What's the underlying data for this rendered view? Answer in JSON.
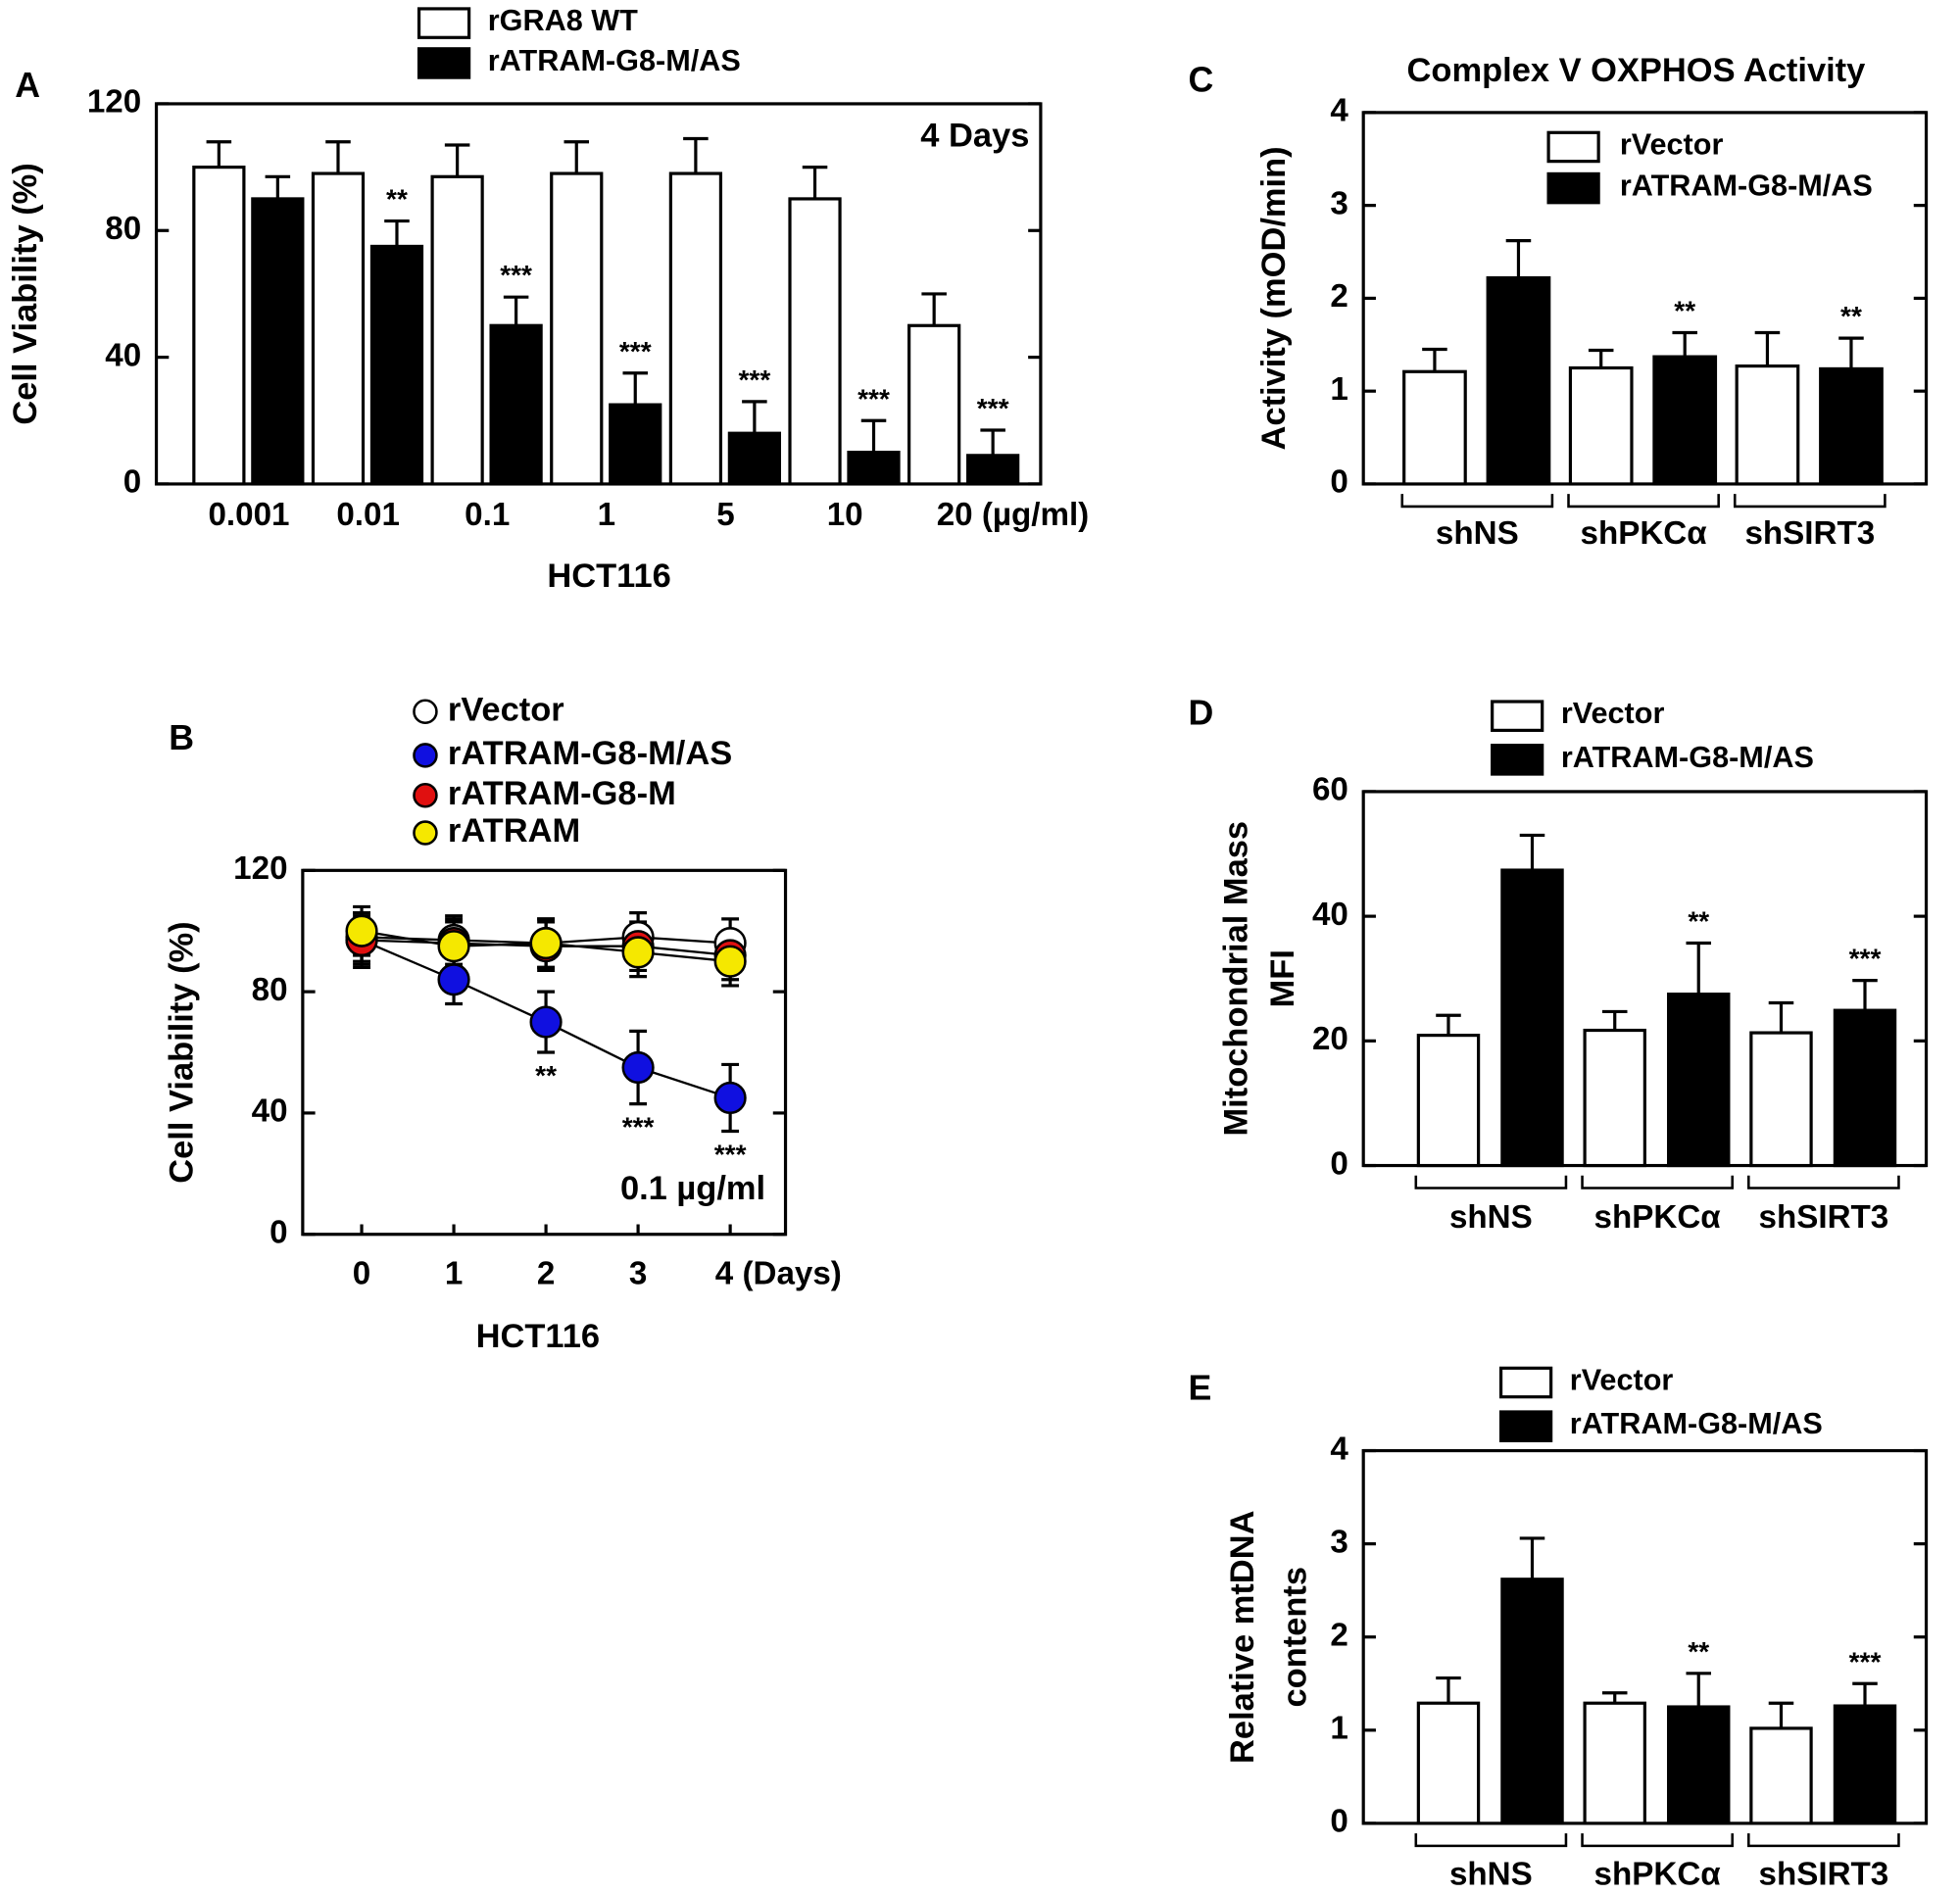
{
  "chart_data": [
    {
      "panel_label": "A",
      "type": "bar",
      "ylabel": "Cell Viability (%)",
      "xlabel": "HCT116",
      "annotation": "4 Days",
      "categories": [
        "0.001",
        "0.01",
        "0.1",
        "1",
        "5",
        "10",
        "20 (µg/ml)"
      ],
      "ylim": [
        0,
        120
      ],
      "yticks": [
        0,
        40,
        80,
        120
      ],
      "series": [
        {
          "name": "rGRA8 WT",
          "color": "#ffffff",
          "values": [
            100,
            98,
            97,
            98,
            98,
            90,
            50
          ],
          "errors": [
            8,
            10,
            10,
            10,
            11,
            10,
            10
          ]
        },
        {
          "name": "rATRAM-G8-M/AS",
          "color": "#000000",
          "values": [
            90,
            75,
            50,
            25,
            16,
            10,
            9
          ],
          "errors": [
            7,
            8,
            9,
            10,
            10,
            10,
            8
          ],
          "significance": [
            null,
            "**",
            "***",
            "***",
            "***",
            "***",
            "***"
          ]
        }
      ]
    },
    {
      "panel_label": "B",
      "type": "line",
      "ylabel": "Cell Viability (%)",
      "xlabel": "HCT116",
      "annotation": "0.1 µg/ml",
      "x": [
        0,
        1,
        2,
        3,
        4
      ],
      "xlim": [
        -0.64,
        4.6
      ],
      "xticks": [
        0,
        1,
        2,
        3,
        {
          "value": 4,
          "label": "4 (Days)"
        }
      ],
      "ylim": [
        0,
        120
      ],
      "yticks": [
        0,
        40,
        80,
        120
      ],
      "series": [
        {
          "name": "rVector",
          "color": "#ffffff",
          "values": [
            98,
            97,
            96,
            98,
            96
          ],
          "errors": [
            8,
            8,
            8,
            8,
            8
          ]
        },
        {
          "name": "rATRAM-G8-M/AS",
          "color": "#1010e0",
          "values": [
            97,
            84,
            70,
            55,
            45
          ],
          "errors": [
            9,
            8,
            10,
            12,
            11
          ],
          "significance": [
            null,
            null,
            "**",
            "***",
            "***"
          ]
        },
        {
          "name": "rATRAM-G8-M",
          "color": "#e01010",
          "values": [
            97,
            96,
            95,
            95,
            92
          ],
          "errors": [
            8,
            8,
            8,
            8,
            8
          ]
        },
        {
          "name": "rATRAM",
          "color": "#f5e800",
          "values": [
            100,
            95,
            96,
            93,
            90
          ],
          "errors": [
            8,
            8,
            8,
            8,
            8
          ]
        }
      ]
    },
    {
      "panel_label": "C",
      "type": "bar",
      "title": "Complex V OXPHOS Activity",
      "ylabel": "Activity (mOD/min)",
      "categories": [
        "shNS",
        "shPKCα",
        "shSIRT3"
      ],
      "ylim": [
        0,
        4
      ],
      "yticks": [
        0,
        1,
        2,
        3,
        4
      ],
      "series": [
        {
          "name": "rVector",
          "color": "#ffffff",
          "values": [
            1.21,
            1.25,
            1.27
          ],
          "errors": [
            0.24,
            0.19,
            0.36
          ]
        },
        {
          "name": "rATRAM-G8-M/AS",
          "color": "#000000",
          "values": [
            2.22,
            1.37,
            1.24
          ],
          "errors": [
            0.4,
            0.26,
            0.33
          ],
          "significance": [
            null,
            "**",
            "**"
          ]
        }
      ]
    },
    {
      "panel_label": "D",
      "type": "bar",
      "ylabel": [
        "Mitochondrial Mass",
        "MFI"
      ],
      "categories": [
        "shNS",
        "shPKCα",
        "shSIRT3"
      ],
      "ylim": [
        0,
        60
      ],
      "yticks": [
        0,
        20,
        40,
        60
      ],
      "series": [
        {
          "name": "rVector",
          "color": "#ffffff",
          "values": [
            20.9,
            21.7,
            21.3
          ],
          "errors": [
            3.2,
            3,
            4.8
          ]
        },
        {
          "name": "rATRAM-G8-M/AS",
          "color": "#000000",
          "values": [
            47.4,
            27.5,
            24.9
          ],
          "errors": [
            5.6,
            8.2,
            4.8
          ],
          "significance": [
            null,
            "**",
            "***"
          ]
        }
      ]
    },
    {
      "panel_label": "E",
      "type": "bar",
      "ylabel": [
        "Relative mtDNA",
        "contents"
      ],
      "categories": [
        "shNS",
        "shPKCα",
        "shSIRT3"
      ],
      "ylim": [
        0,
        4
      ],
      "yticks": [
        0,
        1,
        2,
        3,
        4
      ],
      "series": [
        {
          "name": "rVector",
          "color": "#ffffff",
          "values": [
            1.29,
            1.29,
            1.02
          ],
          "errors": [
            0.27,
            0.11,
            0.27
          ]
        },
        {
          "name": "rATRAM-G8-M/AS",
          "color": "#000000",
          "values": [
            2.62,
            1.25,
            1.26
          ],
          "errors": [
            0.44,
            0.36,
            0.24
          ],
          "significance": [
            null,
            "**",
            "***"
          ]
        }
      ]
    }
  ]
}
